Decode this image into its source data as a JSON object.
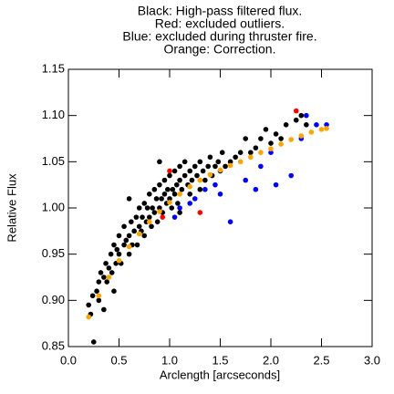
{
  "chart_data": {
    "type": "scatter",
    "title_lines": [
      "Black: High-pass filtered flux.",
      "Red: excluded outliers.",
      "Blue: excluded during thruster fire.",
      "Orange: Correction."
    ],
    "xlabel": "Arclength [arcseconds]",
    "ylabel": "Relative Flux",
    "xlim": [
      0,
      3
    ],
    "ylim": [
      0.85,
      1.15
    ],
    "xticks": [
      {
        "value": 0,
        "label": "0.0"
      },
      0.5,
      {
        "value": 1,
        "label": "1.0"
      },
      1.5,
      {
        "value": 2,
        "label": "2.0"
      },
      2.5,
      {
        "value": 3,
        "label": "3.0"
      }
    ],
    "yticks": [
      0.85,
      {
        "value": 0.9,
        "label": "0.90"
      },
      0.95,
      {
        "value": 1,
        "label": "1.00"
      },
      1.05,
      {
        "value": 1.1,
        "label": "1.10"
      },
      1.15
    ],
    "series": [
      {
        "color": "#000000",
        "x": [
          0.2,
          0.22,
          0.25,
          0.24,
          0.28,
          0.3,
          0.3,
          0.32,
          0.35,
          0.35,
          0.37,
          0.38,
          0.4,
          0.42,
          0.43,
          0.45,
          0.47,
          0.48,
          0.5,
          0.5,
          0.52,
          0.55,
          0.55,
          0.57,
          0.6,
          0.6,
          0.62,
          0.63,
          0.65,
          0.67,
          0.68,
          0.7,
          0.7,
          0.72,
          0.73,
          0.75,
          0.75,
          0.77,
          0.78,
          0.8,
          0.8,
          0.82,
          0.83,
          0.85,
          0.85,
          0.87,
          0.88,
          0.9,
          0.9,
          0.92,
          0.93,
          0.95,
          0.95,
          0.97,
          0.98,
          1.0,
          1.0,
          1.02,
          1.03,
          1.05,
          1.05,
          1.07,
          1.08,
          1.1,
          1.1,
          1.12,
          1.15,
          1.15,
          1.18,
          1.2,
          1.2,
          1.22,
          1.25,
          1.27,
          1.3,
          1.3,
          1.33,
          1.35,
          1.38,
          1.4,
          1.42,
          1.45,
          1.48,
          1.5,
          1.52,
          1.55,
          1.6,
          1.65,
          1.7,
          1.75,
          1.8,
          1.85,
          1.9,
          1.95,
          2.0,
          2.05,
          2.1,
          2.15,
          2.25,
          2.3,
          2.35,
          0.6,
          0.9,
          1.1,
          0.45
        ],
        "y": [
          0.895,
          0.885,
          0.855,
          0.905,
          0.91,
          0.9,
          0.92,
          0.93,
          0.925,
          0.89,
          0.94,
          0.92,
          0.935,
          0.95,
          0.93,
          0.96,
          0.94,
          0.955,
          0.97,
          0.95,
          0.94,
          0.96,
          0.98,
          0.965,
          0.97,
          0.95,
          0.985,
          0.96,
          0.975,
          0.99,
          0.96,
          0.98,
          1.0,
          0.975,
          0.99,
          1.005,
          0.97,
          0.985,
          1.0,
          0.99,
          1.015,
          0.98,
          1.0,
          1.02,
          0.995,
          1.01,
          0.985,
          1.0,
          1.025,
          1.01,
          0.995,
          1.015,
          1.03,
          1.005,
          1.02,
          1.01,
          1.035,
          1.0,
          1.02,
          1.04,
          1.015,
          1.025,
          1.005,
          1.03,
          1.045,
          1.02,
          1.035,
          1.05,
          1.025,
          1.04,
          1.015,
          1.03,
          1.045,
          1.035,
          1.02,
          1.05,
          1.04,
          1.03,
          1.045,
          1.055,
          1.035,
          1.045,
          1.05,
          1.04,
          1.06,
          1.045,
          1.05,
          1.055,
          1.06,
          1.075,
          1.06,
          1.065,
          1.075,
          1.085,
          1.07,
          1.08,
          1.075,
          1.09,
          1.095,
          1.1,
          1.09,
          1.01,
          1.05,
          0.995,
          0.91
        ]
      },
      {
        "color": "#ff0000",
        "x": [
          1.0,
          1.3,
          0.93,
          2.25
        ],
        "y": [
          1.04,
          0.995,
          0.99,
          1.105
        ]
      },
      {
        "color": "#0000ff",
        "x": [
          1.05,
          1.1,
          1.2,
          1.25,
          1.35,
          1.45,
          1.6,
          1.75,
          1.85,
          1.9,
          2.05,
          2.2,
          2.3,
          2.35,
          2.45,
          2.55,
          1.5,
          2.0
        ],
        "y": [
          0.99,
          1.0,
          1.005,
          1.01,
          1.02,
          1.025,
          0.985,
          1.03,
          1.02,
          1.045,
          1.025,
          1.035,
          1.075,
          1.1,
          1.09,
          1.09,
          1.015,
          1.06
        ]
      },
      {
        "color": "#ffa500",
        "x": [
          0.2,
          0.3,
          0.4,
          0.5,
          0.6,
          0.7,
          0.8,
          0.9,
          1.0,
          1.1,
          1.2,
          1.3,
          1.4,
          1.5,
          1.6,
          1.7,
          1.8,
          1.9,
          2.0,
          2.1,
          2.2,
          2.3,
          2.4,
          2.5,
          2.55
        ],
        "y": [
          0.882,
          0.905,
          0.925,
          0.943,
          0.958,
          0.972,
          0.985,
          0.996,
          1.006,
          1.015,
          1.023,
          1.03,
          1.036,
          1.041,
          1.046,
          1.05,
          1.055,
          1.06,
          1.064,
          1.069,
          1.074,
          1.078,
          1.082,
          1.085,
          1.086
        ]
      }
    ]
  }
}
